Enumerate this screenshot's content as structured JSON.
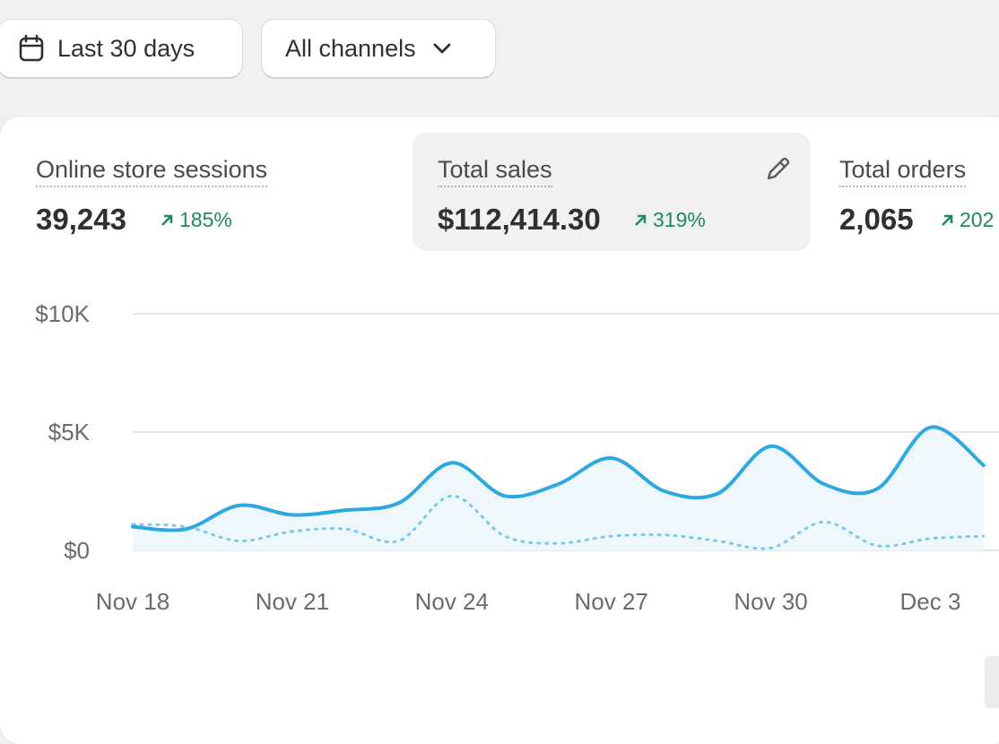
{
  "toolbar": {
    "date_range": {
      "label": "Last 30 days",
      "icon": "calendar-icon"
    },
    "channel_filter": {
      "label": "All channels",
      "icon": "chevron-down-icon"
    }
  },
  "metrics": [
    {
      "label": "Online store sessions",
      "value": "39,243",
      "change": "185%",
      "trend": "up",
      "active": false
    },
    {
      "label": "Total sales",
      "value": "$112,414.30",
      "change": "319%",
      "trend": "up",
      "active": true,
      "action_icon": "pencil-icon"
    },
    {
      "label": "Total orders",
      "value": "2,065",
      "change": "202",
      "trend": "up",
      "active": false
    }
  ],
  "colors": {
    "primary_line": "#2ea8e0",
    "comparison_line": "#7cc8ec",
    "positive": "#1f8a5b",
    "active_metric_bg": "#f1f1f1"
  },
  "chart_data": {
    "type": "line",
    "title": "",
    "xlabel": "",
    "ylabel": "",
    "x": [
      "Nov 18",
      "Nov 19",
      "Nov 20",
      "Nov 21",
      "Nov 22",
      "Nov 23",
      "Nov 24",
      "Nov 25",
      "Nov 26",
      "Nov 27",
      "Nov 28",
      "Nov 29",
      "Nov 30",
      "Dec 1",
      "Dec 2",
      "Dec 3",
      "Dec 4"
    ],
    "x_tick_labels": [
      "Nov 18",
      "Nov 21",
      "Nov 24",
      "Nov 27",
      "Nov 30",
      "Dec 3"
    ],
    "y_ticks": [
      {
        "value": 0,
        "label": "$0"
      },
      {
        "value": 5000,
        "label": "$5K"
      },
      {
        "value": 10000,
        "label": "$10K"
      }
    ],
    "ylim": [
      0,
      10000
    ],
    "series": [
      {
        "values": [
          1000,
          900,
          1900,
          1500,
          1700,
          2000,
          3700,
          2300,
          2800,
          3900,
          2500,
          2400,
          4400,
          2800,
          2600,
          5200,
          3600
        ],
        "style": "solid"
      },
      {
        "values": [
          1100,
          1000,
          400,
          800,
          900,
          400,
          2300,
          600,
          300,
          600,
          650,
          400,
          100,
          1200,
          200,
          500,
          600
        ],
        "style": "dotted"
      }
    ],
    "grid": true,
    "legend": "none"
  }
}
